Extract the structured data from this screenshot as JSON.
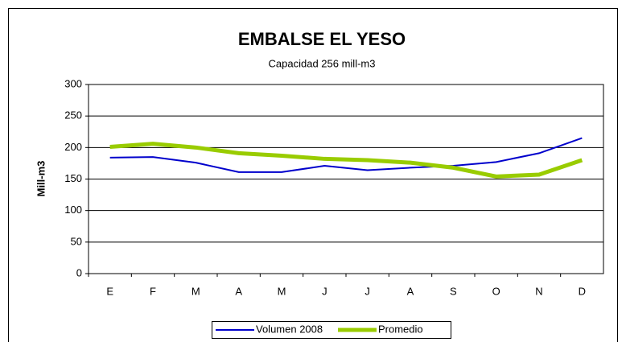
{
  "chart_data": {
    "type": "line",
    "title": "EMBALSE EL YESO",
    "subtitle": "Capacidad 256 mill-m3",
    "y_label": "Mill-m3",
    "categories": [
      "E",
      "F",
      "M",
      "A",
      "M",
      "J",
      "J",
      "A",
      "S",
      "O",
      "N",
      "D"
    ],
    "series": [
      {
        "name": "Volumen  2008",
        "color": "#0000cc",
        "values": [
          184,
          185,
          176,
          161,
          161,
          171,
          164,
          168,
          171,
          177,
          191,
          215
        ]
      },
      {
        "name": "Promedio",
        "color": "#99cc00",
        "values": [
          201,
          206,
          200,
          191,
          187,
          182,
          180,
          176,
          168,
          154,
          157,
          180
        ]
      }
    ],
    "ylim": [
      0,
      300
    ],
    "yticks": [
      0,
      50,
      100,
      150,
      200,
      250,
      300
    ],
    "grid": true
  }
}
